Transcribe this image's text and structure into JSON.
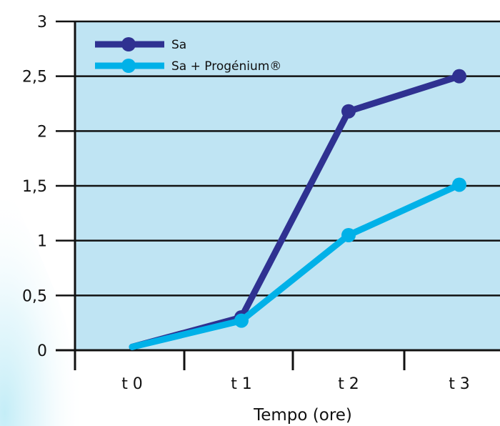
{
  "chart_data": {
    "type": "line",
    "title": "",
    "xlabel": "Tempo (ore)",
    "ylabel": "",
    "categories": [
      "t 0",
      "t 1",
      "t 2",
      "t 3"
    ],
    "y_tick_labels": [
      "0",
      "0,5",
      "1",
      "1,5",
      "2",
      "2,5",
      "3"
    ],
    "ylim": [
      0,
      3
    ],
    "grid": true,
    "legend_position": "top-left",
    "series": [
      {
        "name": "Sa",
        "values": [
          0.03,
          0.3,
          2.18,
          2.5
        ],
        "color": "#2f3191"
      },
      {
        "name": "Sa  + Progénium®",
        "values": [
          0.03,
          0.27,
          1.05,
          1.51
        ],
        "color": "#00b1e8"
      }
    ],
    "plot_background": "#bfe4f3"
  }
}
